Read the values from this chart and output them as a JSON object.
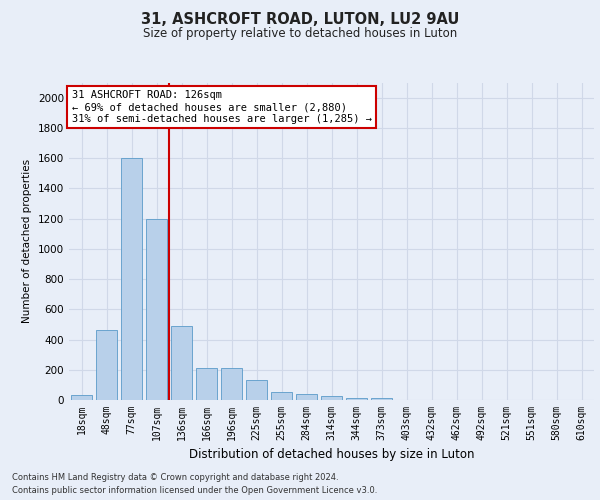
{
  "title_line1": "31, ASHCROFT ROAD, LUTON, LU2 9AU",
  "title_line2": "Size of property relative to detached houses in Luton",
  "xlabel": "Distribution of detached houses by size in Luton",
  "ylabel": "Number of detached properties",
  "footnote1": "Contains HM Land Registry data © Crown copyright and database right 2024.",
  "footnote2": "Contains public sector information licensed under the Open Government Licence v3.0.",
  "categories": [
    "18sqm",
    "48sqm",
    "77sqm",
    "107sqm",
    "136sqm",
    "166sqm",
    "196sqm",
    "225sqm",
    "255sqm",
    "284sqm",
    "314sqm",
    "344sqm",
    "373sqm",
    "403sqm",
    "432sqm",
    "462sqm",
    "492sqm",
    "521sqm",
    "551sqm",
    "580sqm",
    "610sqm"
  ],
  "values": [
    35,
    460,
    1600,
    1200,
    490,
    210,
    210,
    130,
    50,
    40,
    25,
    15,
    10,
    0,
    0,
    0,
    0,
    0,
    0,
    0,
    0
  ],
  "bar_color": "#b8d0ea",
  "bar_edge_color": "#5a9bc9",
  "grid_color": "#d0d8e8",
  "annotation_text": "31 ASHCROFT ROAD: 126sqm\n← 69% of detached houses are smaller (2,880)\n31% of semi-detached houses are larger (1,285) →",
  "annotation_box_facecolor": "#ffffff",
  "annotation_box_edgecolor": "#cc0000",
  "vline_x_index": 3.5,
  "vline_color": "#cc0000",
  "yticks": [
    0,
    200,
    400,
    600,
    800,
    1000,
    1200,
    1400,
    1600,
    1800,
    2000
  ],
  "ylim": [
    0,
    2100
  ],
  "bg_color": "#e8eef8",
  "plot_bg_color": "#e8eef8"
}
